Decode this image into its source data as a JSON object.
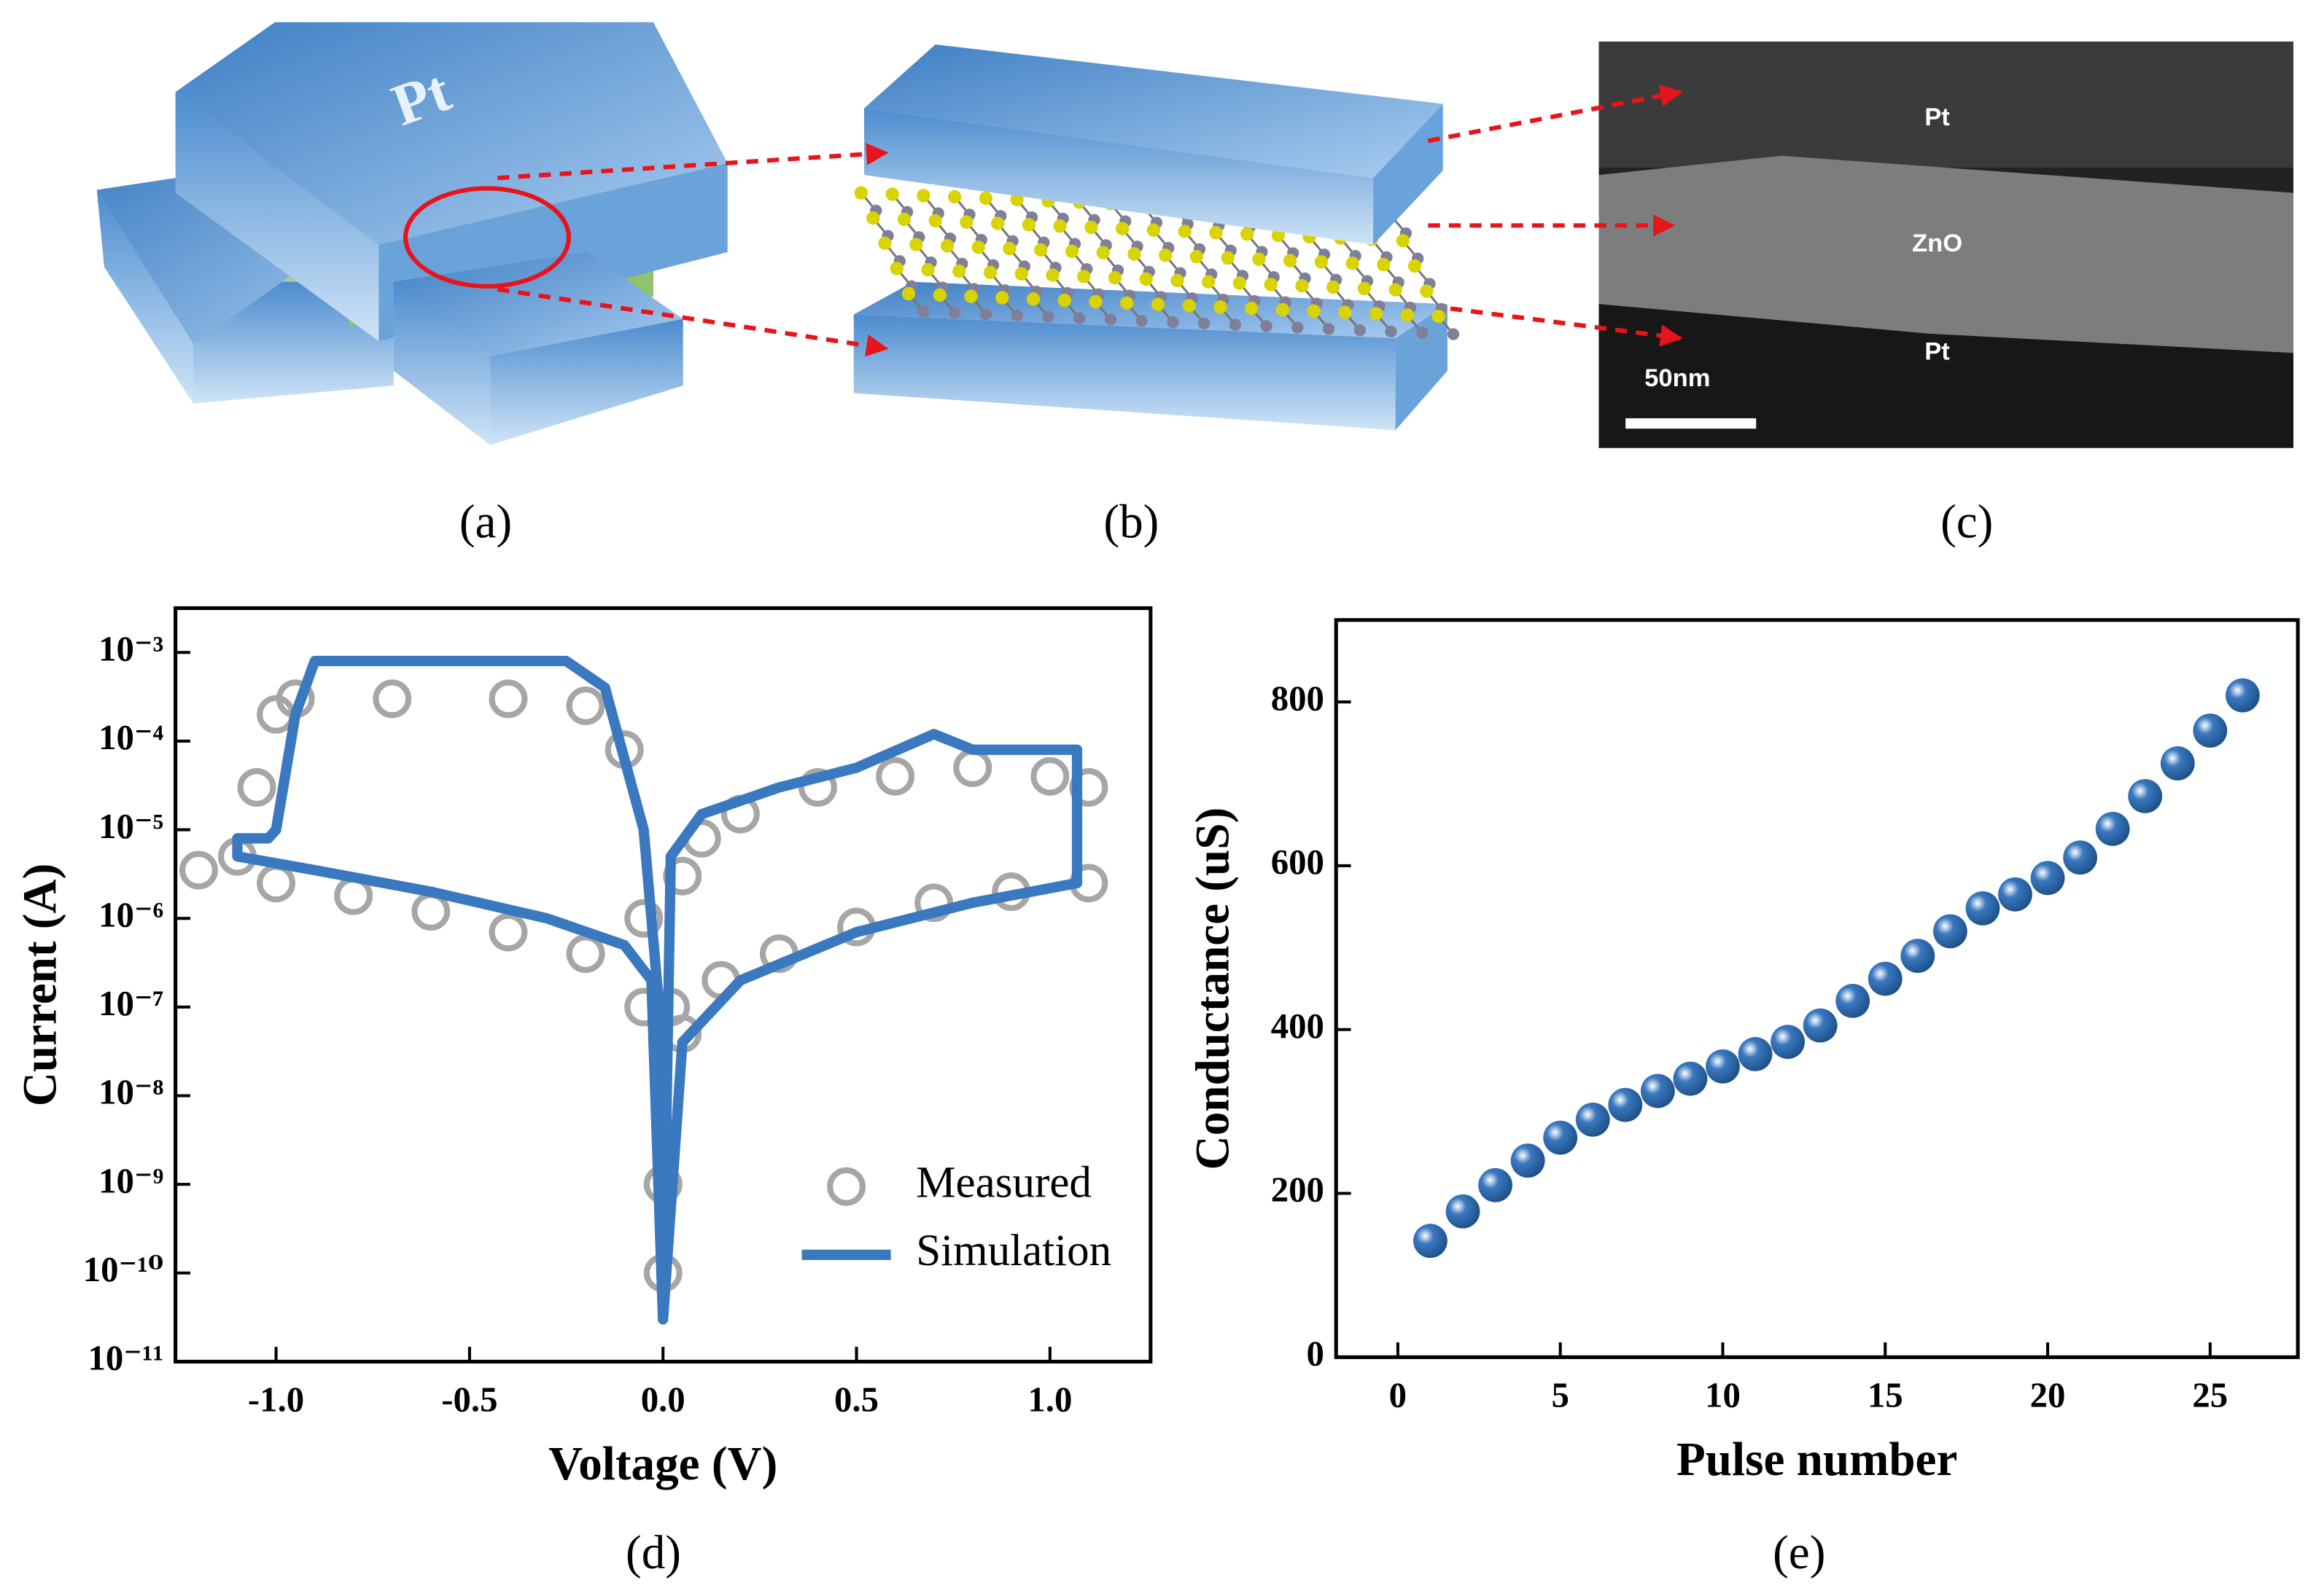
{
  "panels": {
    "a": {
      "label": "(a)",
      "layer": "Pt"
    },
    "b": {
      "label": "(b)"
    },
    "c": {
      "label": "(c)",
      "layers": [
        "Pt",
        "ZnO",
        "Pt"
      ],
      "scale_bar": "50nm"
    }
  },
  "chart_data": [
    {
      "type": "line",
      "caption": "(d)",
      "xlabel": "Voltage (V)",
      "ylabel": "Current (A)",
      "xlim": [
        -1.26,
        1.26
      ],
      "ylim": [
        1e-11,
        0.00316
      ],
      "yscale": "log",
      "legend": "lower right",
      "xticks": [
        {
          "value": -1,
          "label": "-1.0"
        },
        {
          "value": -0.5,
          "label": "-0.5"
        },
        {
          "value": 0,
          "label": "0.0"
        },
        {
          "value": 0.5,
          "label": "0.5"
        },
        {
          "value": 1,
          "label": "1.0"
        }
      ],
      "yticks": [
        {
          "value": 1e-11,
          "label": "10⁻¹¹"
        },
        {
          "value": 1e-10,
          "label": "10⁻¹⁰"
        },
        {
          "value": 1e-09,
          "label": "10⁻⁹"
        },
        {
          "value": 1e-08,
          "label": "10⁻⁸"
        },
        {
          "value": 1e-07,
          "label": "10⁻⁷"
        },
        {
          "value": 1e-06,
          "label": "10⁻⁶"
        },
        {
          "value": 1e-05,
          "label": "10⁻⁵"
        },
        {
          "value": 0.0001,
          "label": "10⁻⁴"
        },
        {
          "value": 0.001,
          "label": "10⁻³"
        }
      ],
      "series": [
        {
          "name": "Measured",
          "color": "#a6a6a6",
          "style": "markers",
          "x": [
            0,
            0.02,
            0.05,
            0.1,
            0.2,
            0.4,
            0.6,
            0.8,
            1.0,
            1.1,
            1.1,
            0.9,
            0.7,
            0.5,
            0.3,
            0.15,
            0.05,
            0,
            -0.05,
            -0.2,
            -0.4,
            -0.6,
            -0.8,
            -1.0,
            -1.2,
            -1.1,
            -1.05,
            -1.0,
            -0.95,
            -0.7,
            -0.4,
            -0.2,
            -0.1,
            -0.05,
            0
          ],
          "values": [
            1e-10,
            1e-07,
            3e-06,
            8e-06,
            1.5e-05,
            3e-05,
            4e-05,
            5e-05,
            4e-05,
            3e-05,
            2.5e-06,
            2e-06,
            1.5e-06,
            8e-07,
            4e-07,
            2e-07,
            5e-08,
            1e-09,
            1e-07,
            4e-07,
            7e-07,
            1.2e-06,
            1.8e-06,
            2.5e-06,
            3.5e-06,
            5e-06,
            3e-05,
            0.0002,
            0.0003,
            0.0003,
            0.0003,
            0.00025,
            8e-05,
            1e-06,
            1e-09
          ]
        },
        {
          "name": "Simulation",
          "color": "#3a78c0",
          "style": "line",
          "x": [
            0,
            0.02,
            0.1,
            0.3,
            0.5,
            0.7,
            0.8,
            1.07,
            1.07,
            0.8,
            0.5,
            0.2,
            0.05,
            0,
            -0.03,
            -0.1,
            -0.3,
            -0.6,
            -0.9,
            -1.1,
            -1.1,
            -1.02,
            -1.0,
            -0.95,
            -0.9,
            -0.25,
            -0.15,
            -0.05,
            -0.01,
            0
          ],
          "values": [
            3e-11,
            5e-06,
            1.5e-05,
            3e-05,
            5e-05,
            0.00012,
            8e-05,
            8e-05,
            2.5e-06,
            1.5e-06,
            7e-07,
            2e-07,
            4e-08,
            3e-11,
            2e-07,
            5e-07,
            1e-06,
            2e-06,
            3.5e-06,
            5e-06,
            8e-06,
            8e-06,
            1e-05,
            0.0002,
            0.0008,
            0.0008,
            0.0004,
            1e-05,
            1e-07,
            3e-11
          ]
        }
      ]
    },
    {
      "type": "scatter",
      "caption": "(e)",
      "xlabel": "Pulse number",
      "ylabel": "Conductance (uS)",
      "color": "#3a78c0",
      "xlim": [
        -1.9,
        27.7
      ],
      "ylim": [
        0,
        900
      ],
      "xticks": [
        0,
        5,
        10,
        15,
        20,
        25
      ],
      "yticks": [
        0,
        200,
        400,
        600,
        800
      ],
      "x": [
        1,
        2,
        3,
        4,
        5,
        6,
        7,
        8,
        9,
        10,
        11,
        12,
        13,
        14,
        15,
        16,
        17,
        18,
        19,
        20,
        21,
        22,
        23,
        24,
        25,
        26
      ],
      "values": [
        142,
        178,
        210,
        240,
        268,
        290,
        308,
        325,
        340,
        355,
        370,
        385,
        405,
        435,
        462,
        490,
        520,
        548,
        565,
        585,
        610,
        645,
        685,
        725,
        765,
        808
      ]
    }
  ]
}
